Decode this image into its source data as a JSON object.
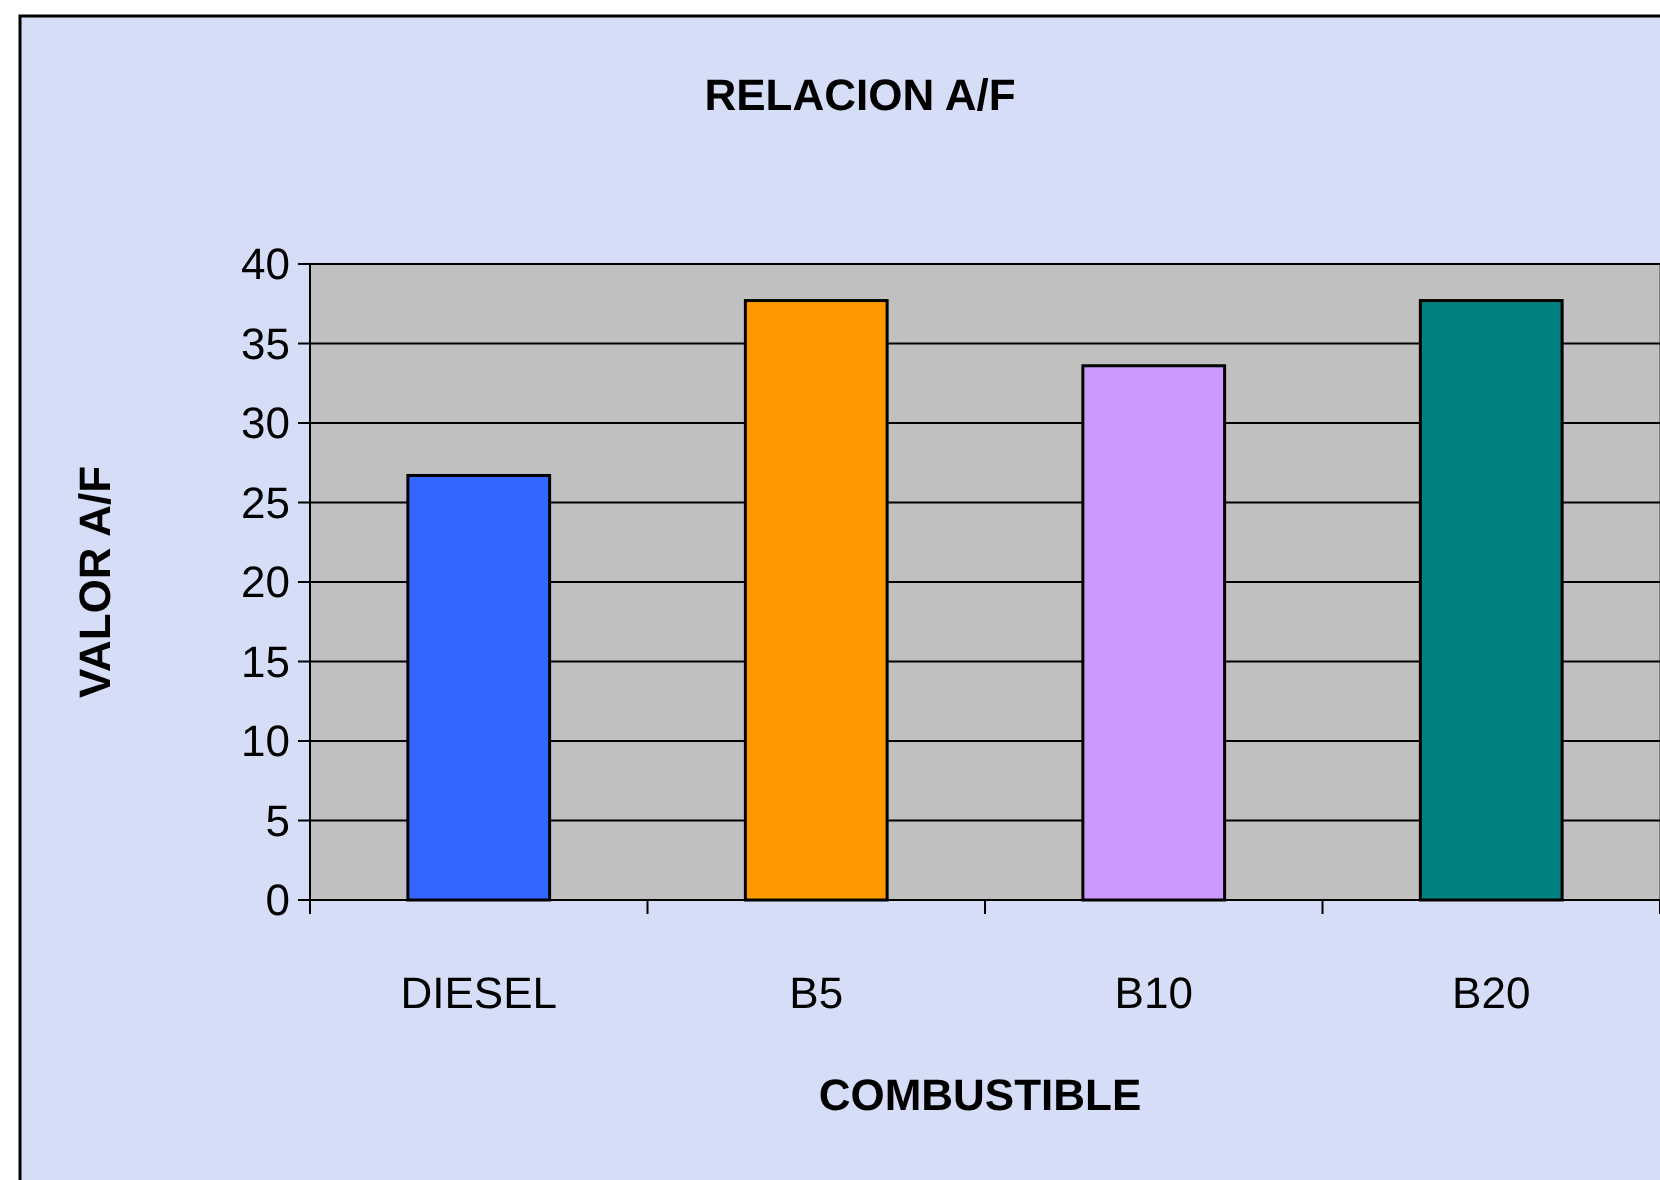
{
  "chart_data": {
    "type": "bar",
    "title": "RELACION A/F",
    "xlabel": "COMBUSTIBLE",
    "ylabel": "VALOR A/F",
    "categories": [
      "DIESEL",
      "B5",
      "B10",
      "B20"
    ],
    "values": [
      26.7,
      37.7,
      33.6,
      37.7
    ],
    "colors": [
      "#3366ff",
      "#ff9900",
      "#cc99ff",
      "#008080"
    ],
    "ylim": [
      0,
      40
    ],
    "yticks": [
      0,
      5,
      10,
      15,
      20,
      25,
      30,
      35,
      40
    ],
    "grid": "y"
  }
}
